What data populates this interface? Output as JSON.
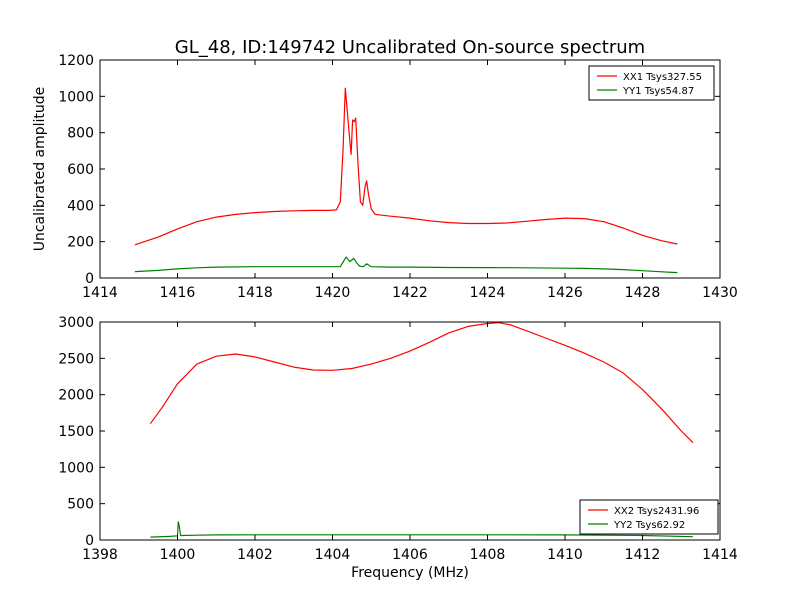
{
  "title": "GL_48, ID:149742 Uncalibrated On-source spectrum",
  "chart_data": [
    {
      "type": "line",
      "xlabel": "",
      "ylabel": "Uncalibrated amplitude",
      "xlim": [
        1414,
        1430
      ],
      "ylim": [
        0,
        1200
      ],
      "xticks": [
        1414,
        1416,
        1418,
        1420,
        1422,
        1424,
        1426,
        1428,
        1430
      ],
      "yticks": [
        0,
        200,
        400,
        600,
        800,
        1000,
        1200
      ],
      "legend_position": "top-right",
      "series": [
        {
          "name": "XX1 Tsys327.55",
          "color": "#ff0000",
          "x": [
            1414.9,
            1415.5,
            1416,
            1416.5,
            1417,
            1417.5,
            1418,
            1418.5,
            1419,
            1419.5,
            1419.9,
            1420.1,
            1420.2,
            1420.27,
            1420.33,
            1420.37,
            1420.42,
            1420.48,
            1420.52,
            1420.56,
            1420.6,
            1420.66,
            1420.72,
            1420.78,
            1420.84,
            1420.88,
            1420.93,
            1421.0,
            1421.1,
            1421.3,
            1421.5,
            1422,
            1422.5,
            1423,
            1423.5,
            1424,
            1424.5,
            1425,
            1425.5,
            1426,
            1426.5,
            1427,
            1427.5,
            1428,
            1428.5,
            1428.9
          ],
          "y": [
            183,
            225,
            270,
            310,
            335,
            350,
            360,
            366,
            370,
            372,
            372,
            375,
            420,
            700,
            1045,
            950,
            820,
            680,
            870,
            860,
            880,
            620,
            420,
            400,
            500,
            535,
            460,
            380,
            350,
            345,
            340,
            330,
            315,
            305,
            300,
            300,
            303,
            312,
            322,
            330,
            327,
            310,
            275,
            235,
            205,
            187
          ]
        },
        {
          "name": "YY1 Tsys54.87",
          "color": "#008000",
          "x": [
            1414.9,
            1415.5,
            1416,
            1416.5,
            1417,
            1418,
            1419,
            1420,
            1420.2,
            1420.35,
            1420.45,
            1420.55,
            1420.62,
            1420.7,
            1420.8,
            1420.88,
            1421,
            1421.5,
            1422,
            1423,
            1424,
            1425,
            1426,
            1426.5,
            1427,
            1427.5,
            1428,
            1428.5,
            1428.9
          ],
          "y": [
            35,
            42,
            50,
            56,
            60,
            62,
            62,
            62,
            62,
            115,
            90,
            108,
            85,
            65,
            63,
            78,
            62,
            60,
            60,
            58,
            57,
            56,
            54,
            53,
            50,
            46,
            40,
            34,
            30
          ]
        }
      ]
    },
    {
      "type": "line",
      "xlabel": "Frequency (MHz)",
      "ylabel": "",
      "xlim": [
        1398,
        1414
      ],
      "ylim": [
        0,
        3000
      ],
      "xticks": [
        1398,
        1400,
        1402,
        1404,
        1406,
        1408,
        1410,
        1412,
        1414
      ],
      "yticks": [
        0,
        500,
        1000,
        1500,
        2000,
        2500,
        3000
      ],
      "legend_position": "bottom-right",
      "series": [
        {
          "name": "XX2 Tsys2431.96",
          "color": "#ff0000",
          "x": [
            1399.3,
            1399.6,
            1400,
            1400.5,
            1401,
            1401.5,
            1402,
            1402.5,
            1403,
            1403.5,
            1404,
            1404.5,
            1405,
            1405.5,
            1406,
            1406.5,
            1407,
            1407.5,
            1408,
            1408.3,
            1408.6,
            1409,
            1409.5,
            1410,
            1410.5,
            1411,
            1411.5,
            1412,
            1412.5,
            1413,
            1413.3
          ],
          "y": [
            1600,
            1820,
            2150,
            2420,
            2530,
            2560,
            2520,
            2450,
            2380,
            2340,
            2335,
            2360,
            2420,
            2500,
            2600,
            2720,
            2850,
            2940,
            2980,
            2990,
            2960,
            2880,
            2780,
            2680,
            2570,
            2450,
            2300,
            2070,
            1800,
            1500,
            1340
          ]
        },
        {
          "name": "YY2 Tsys62.92",
          "color": "#008000",
          "x": [
            1399.3,
            1399.8,
            1400.0,
            1400.02,
            1400.05,
            1400.08,
            1400.12,
            1400.5,
            1401,
            1402,
            1404,
            1406,
            1408,
            1410,
            1412,
            1413.3
          ],
          "y": [
            40,
            50,
            58,
            250,
            180,
            60,
            62,
            66,
            70,
            72,
            72,
            72,
            72,
            70,
            62,
            45
          ]
        }
      ]
    }
  ]
}
